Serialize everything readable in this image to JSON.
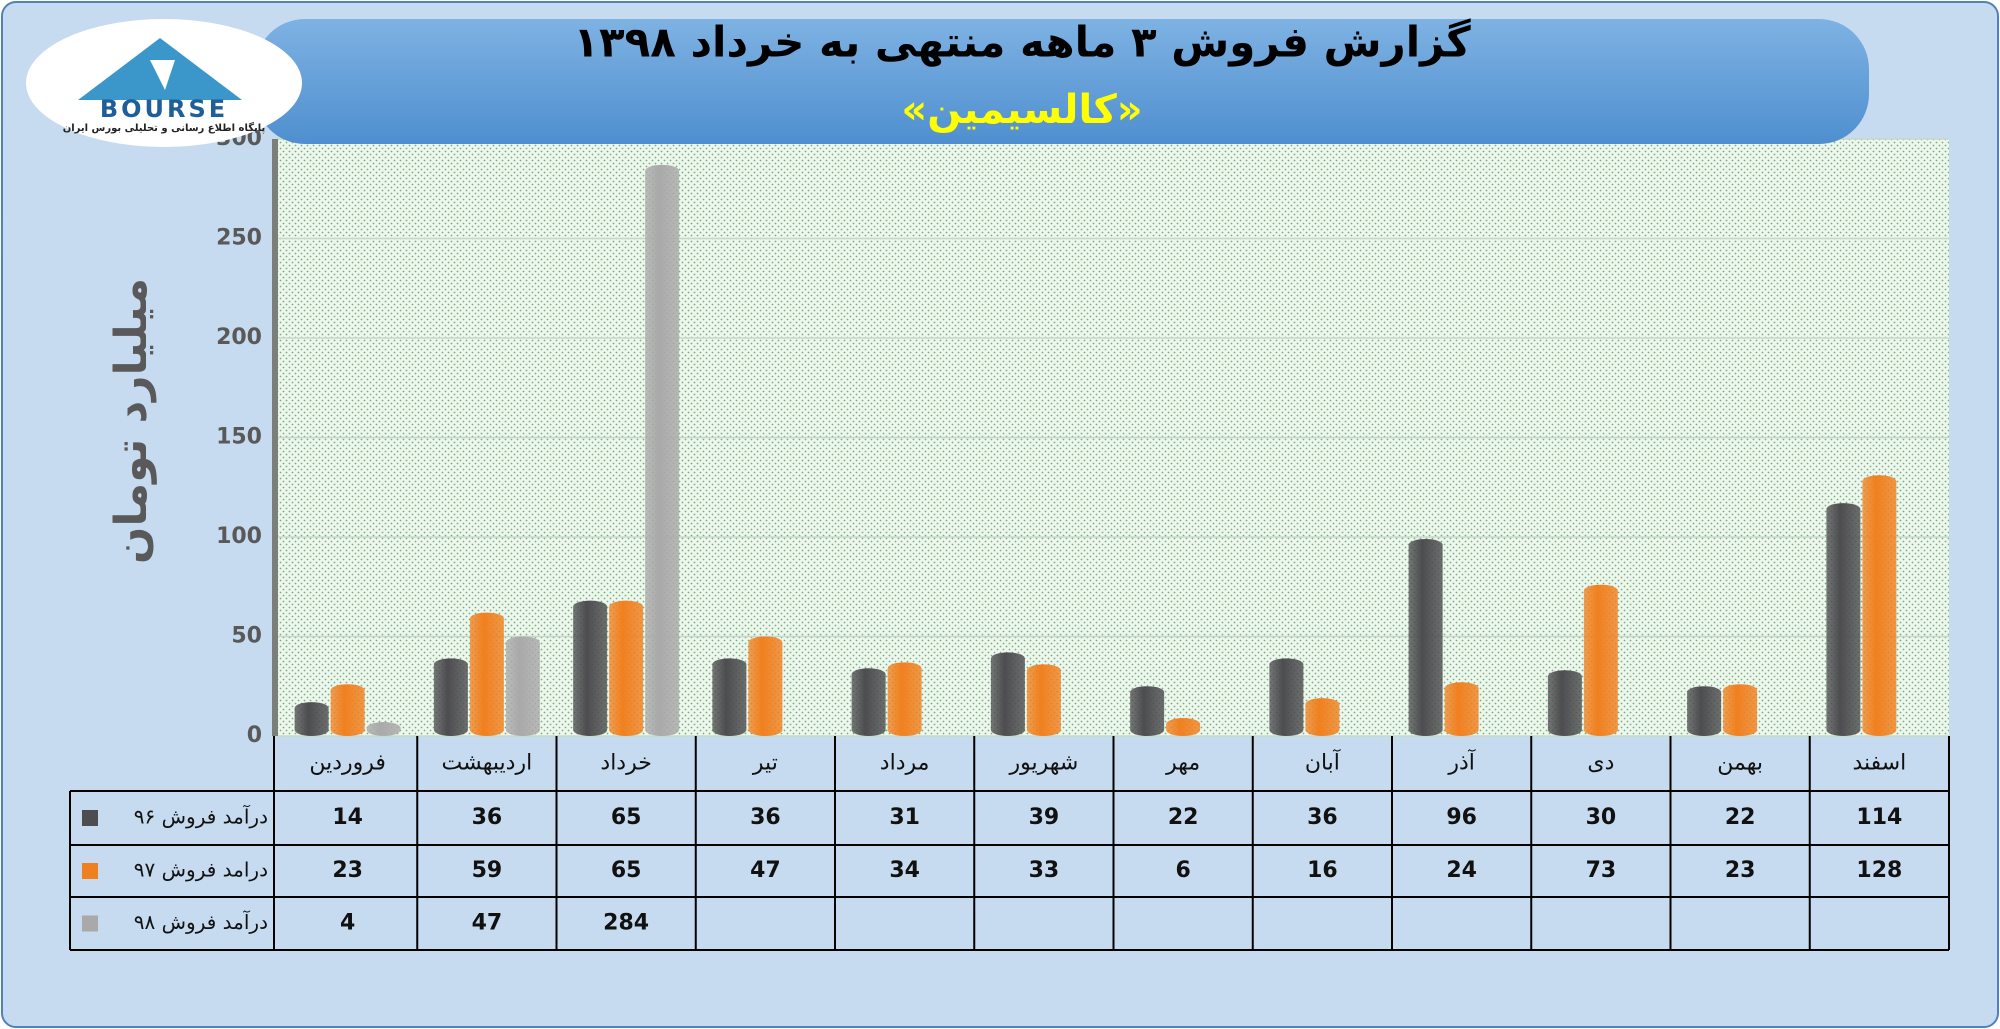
{
  "logo": {
    "text": "BOURSE",
    "subtitle": "پایگاه اطلاع رسانی و تحلیلی بورس ایران"
  },
  "chart_data": {
    "type": "bar",
    "title": "گزارش فروش ۳ ماهه منتهی به خرداد ۱۳۹۸",
    "subtitle": "«کالسیمین»",
    "y_label": "میلیارد تومان",
    "categories": [
      "فروردین",
      "اردیبهشت",
      "خرداد",
      "تیر",
      "مرداد",
      "شهریور",
      "مهر",
      "آبان",
      "آذر",
      "دی",
      "بهمن",
      "اسفند"
    ],
    "series": [
      {
        "name": "درآمد فروش ۹۶",
        "color": "#4d4d4f",
        "values": [
          14,
          36,
          65,
          36,
          31,
          39,
          22,
          36,
          96,
          30,
          22,
          114
        ]
      },
      {
        "name": "درامد فروش ۹۷",
        "color": "#f0801f",
        "values": [
          23,
          59,
          65,
          47,
          34,
          33,
          6,
          16,
          24,
          73,
          23,
          128
        ]
      },
      {
        "name": "درآمد فروش ۹۸",
        "color": "#a9a9a9",
        "values": [
          4,
          47,
          284,
          null,
          null,
          null,
          null,
          null,
          null,
          null,
          null,
          null
        ]
      }
    ],
    "ylim": [
      0,
      300
    ],
    "yticks": [
      0,
      50,
      100,
      150,
      200,
      250,
      300
    ],
    "grid": true
  }
}
